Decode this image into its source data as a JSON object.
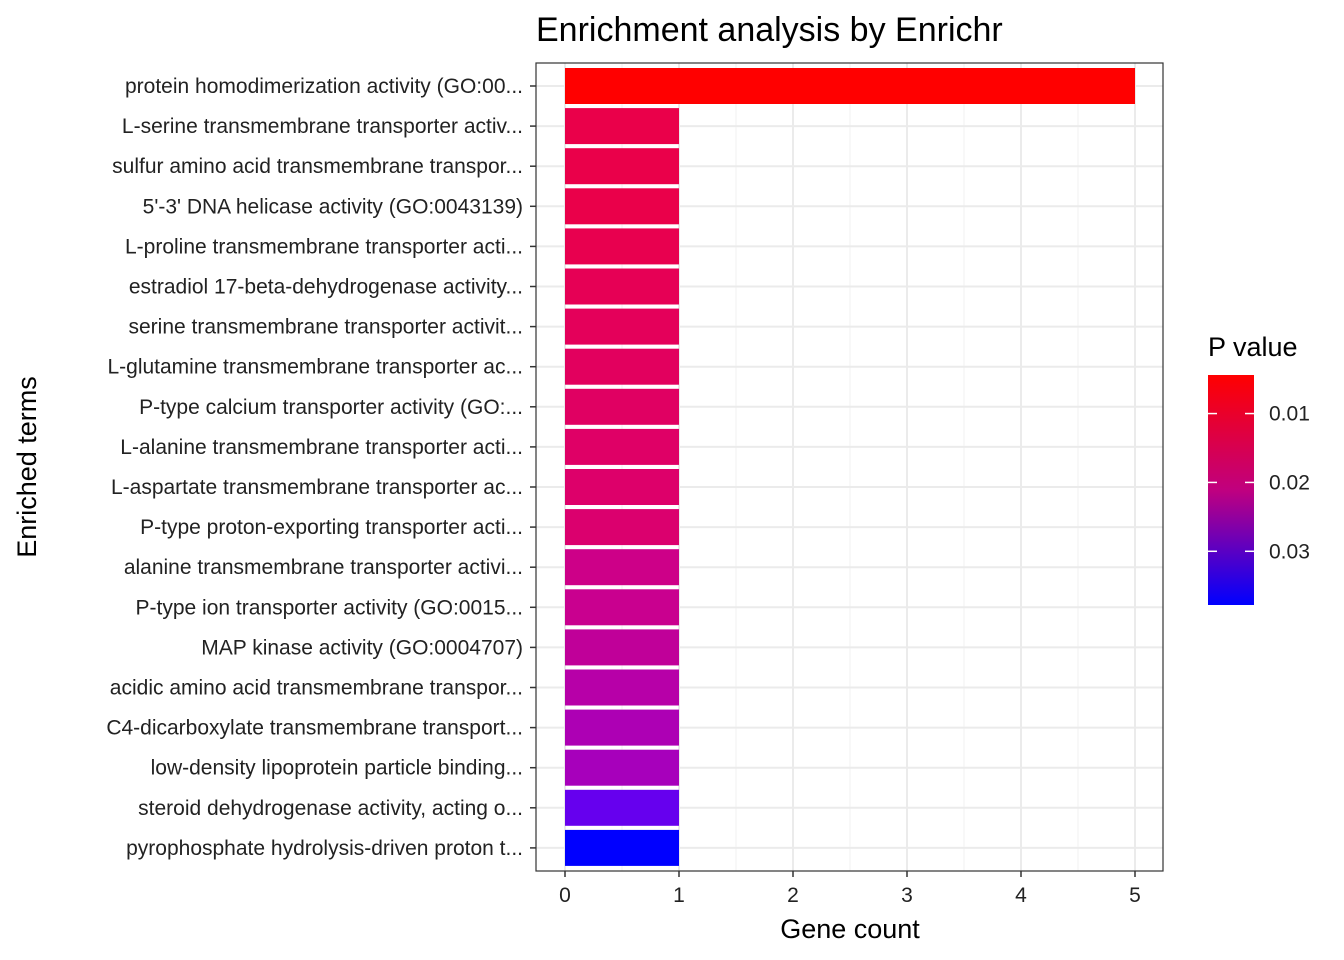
{
  "chart_data": {
    "type": "bar",
    "orientation": "horizontal",
    "title": "Enrichment analysis by Enrichr",
    "xlabel": "Gene count",
    "ylabel": "Enriched terms",
    "xlim": [
      0,
      5.25
    ],
    "x_ticks": [
      0,
      1,
      2,
      3,
      4,
      5
    ],
    "grid": true,
    "legend_position": "right",
    "categories": [
      "protein homodimerization activity (GO:00...",
      "L-serine transmembrane transporter activ...",
      "sulfur amino acid transmembrane transpor...",
      "5'-3' DNA helicase activity (GO:0043139)",
      "L-proline transmembrane transporter acti...",
      "estradiol 17-beta-dehydrogenase activity...",
      "serine transmembrane transporter activit...",
      "L-glutamine transmembrane transporter ac...",
      "P-type calcium transporter activity (GO:...",
      "L-alanine transmembrane transporter acti...",
      "L-aspartate transmembrane transporter ac...",
      "P-type proton-exporting transporter acti...",
      "alanine transmembrane transporter activi...",
      "P-type ion transporter activity (GO:0015...",
      "MAP kinase activity (GO:0004707)",
      "acidic amino acid transmembrane transpor...",
      "C4-dicarboxylate transmembrane transport...",
      "low-density lipoprotein particle binding...",
      "steroid dehydrogenase activity, acting o...",
      "pyrophosphate hydrolysis-driven proton t..."
    ],
    "values": [
      5,
      1,
      1,
      1,
      1,
      1,
      1,
      1,
      1,
      1,
      1,
      1,
      1,
      1,
      1,
      1,
      1,
      1,
      1,
      1
    ],
    "colors": [
      "#ff0000",
      "#ea004a",
      "#ea004a",
      "#ea004a",
      "#e8004f",
      "#e60055",
      "#e4005a",
      "#e2005e",
      "#e00062",
      "#df0066",
      "#dd006a",
      "#db006e",
      "#cd0088",
      "#c9008f",
      "#c00099",
      "#b700a8",
      "#ad00b4",
      "#a700bb",
      "#6600ee",
      "#0000ff"
    ],
    "legend": {
      "title": "P value",
      "color_low": "#ff0000",
      "color_high": "#0000ff",
      "range": [
        0.0044,
        0.0378
      ],
      "ticks": [
        0.01,
        0.02,
        0.03
      ],
      "tick_labels": [
        "0.01",
        "0.02",
        "0.03"
      ]
    }
  }
}
